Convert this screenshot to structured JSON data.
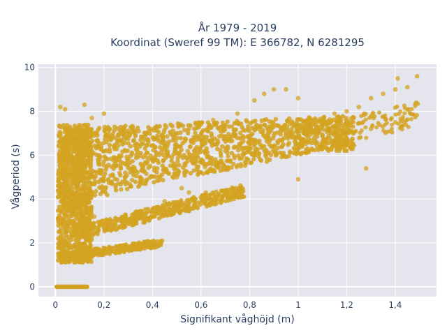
{
  "chart_data": {
    "type": "scatter",
    "title_line1": "År 1979 - 2019",
    "title_line2": "Koordinat (Sweref 99 TM): E 366782, N 6281295",
    "xlabel": "Signifikant våghöjd (m)",
    "ylabel": "Vågperiod (s)",
    "xlim": [
      -0.07,
      1.57
    ],
    "ylim": [
      -0.45,
      10.15
    ],
    "xticks": [
      0,
      0.2,
      0.4,
      0.6,
      0.8,
      1,
      1.2,
      1.4
    ],
    "xtick_labels": [
      "0",
      "0,2",
      "0,4",
      "0,6",
      "0,8",
      "1",
      "1,2",
      "1,4"
    ],
    "yticks": [
      0,
      2,
      4,
      6,
      8,
      10
    ],
    "ytick_labels": [
      "0",
      "2",
      "4",
      "6",
      "8",
      "10"
    ],
    "grid": true,
    "background": "#e5e5ee",
    "marker_color": "#d4a321",
    "series": [
      {
        "points": [
          [
            0.01,
            0.0
          ],
          [
            0.04,
            0.0
          ],
          [
            0.07,
            0.0
          ],
          [
            0.1,
            0.0
          ],
          [
            0.13,
            0.0
          ],
          [
            0.02,
            1.2
          ],
          [
            0.05,
            1.5
          ],
          [
            0.08,
            1.8
          ],
          [
            0.1,
            2.3
          ],
          [
            0.12,
            2.8
          ],
          [
            0.14,
            1.3
          ],
          [
            0.02,
            3.5
          ],
          [
            0.03,
            5.2
          ],
          [
            0.04,
            6.3
          ],
          [
            0.02,
            8.2
          ],
          [
            0.04,
            8.1
          ],
          [
            0.06,
            7.1
          ],
          [
            0.09,
            6.5
          ],
          [
            0.12,
            7.0
          ],
          [
            0.15,
            7.7
          ],
          [
            0.18,
            6.0
          ],
          [
            0.2,
            7.9
          ],
          [
            0.12,
            4.5
          ],
          [
            0.16,
            3.2
          ],
          [
            0.2,
            2.7
          ],
          [
            0.25,
            2.6
          ],
          [
            0.3,
            3.0
          ],
          [
            0.35,
            3.4
          ],
          [
            0.45,
            3.9
          ],
          [
            0.55,
            4.3
          ],
          [
            0.62,
            4.3
          ],
          [
            0.7,
            4.4
          ],
          [
            0.76,
            4.3
          ],
          [
            0.2,
            1.6
          ],
          [
            0.3,
            1.8
          ],
          [
            0.4,
            2.0
          ],
          [
            0.44,
            2.1
          ],
          [
            0.25,
            5.5
          ],
          [
            0.35,
            6.0
          ],
          [
            0.45,
            6.6
          ],
          [
            0.55,
            7.2
          ],
          [
            0.65,
            7.6
          ],
          [
            0.75,
            7.9
          ],
          [
            0.82,
            8.5
          ],
          [
            0.86,
            8.8
          ],
          [
            0.9,
            9.0
          ],
          [
            0.95,
            9.0
          ],
          [
            1.0,
            8.6
          ],
          [
            0.5,
            5.0
          ],
          [
            0.6,
            5.8
          ],
          [
            0.7,
            6.2
          ],
          [
            0.8,
            6.5
          ],
          [
            0.9,
            6.9
          ],
          [
            1.0,
            6.9
          ],
          [
            1.05,
            7.3
          ],
          [
            1.1,
            7.5
          ],
          [
            1.15,
            7.9
          ],
          [
            1.2,
            8.0
          ],
          [
            1.25,
            8.2
          ],
          [
            1.3,
            8.6
          ],
          [
            1.35,
            8.8
          ],
          [
            1.4,
            9.0
          ],
          [
            1.45,
            9.1
          ],
          [
            1.49,
            9.6
          ],
          [
            1.41,
            9.5
          ],
          [
            1.2,
            6.7
          ],
          [
            1.3,
            7.2
          ],
          [
            1.4,
            7.5
          ],
          [
            1.28,
            5.4
          ],
          [
            1.0,
            4.9
          ],
          [
            0.52,
            4.5
          ],
          [
            0.12,
            8.3
          ]
        ]
      }
    ]
  }
}
